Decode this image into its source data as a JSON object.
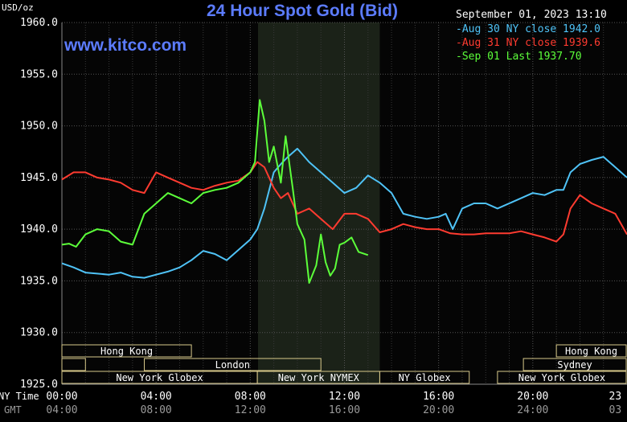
{
  "chart_data": {
    "type": "line",
    "title": "24 Hour Spot Gold (Bid)",
    "watermark": "www.kitco.com",
    "timestamp": "September 01, 2023 13:10",
    "ylabel": "USD/oz",
    "ylim": [
      1925,
      1960
    ],
    "yticks": [
      "1960.0",
      "1955.0",
      "1950.0",
      "1945.0",
      "1940.0",
      "1935.0",
      "1930.0",
      "1925.0"
    ],
    "x_axis_ny_label": "NY Time",
    "x_axis_gmt_label": "GMT",
    "x_ticks_ny": [
      "00:00",
      "04:00",
      "08:00",
      "12:00",
      "16:00",
      "20:00",
      "23"
    ],
    "x_ticks_gmt": [
      "04:00",
      "08:00",
      "12:00",
      "16:00",
      "20:00",
      "24:00",
      "03"
    ],
    "x_tick_hours": [
      0,
      4,
      8,
      12,
      16,
      20,
      23.5
    ],
    "xlim": [
      0,
      24
    ],
    "shaded_session_hours": [
      8.33,
      13.5
    ],
    "legend": [
      {
        "label": "Aug 30 NY close 1942.0",
        "color": "#4fc3f7"
      },
      {
        "label": "Aug 31 NY close 1939.6",
        "color": "#ff3b30"
      },
      {
        "label": "Sep 01 Last 1937.70",
        "color": "#5cff3a"
      }
    ],
    "sessions": [
      {
        "label": "Hong Kong",
        "row": 0,
        "start": 0,
        "end": 5.5
      },
      {
        "label": "London",
        "row": 1,
        "start": 0,
        "end": 1.0
      },
      {
        "label": "London",
        "row": 1,
        "start": 3.5,
        "end": 11.0,
        "text": true
      },
      {
        "label": "New York Globex",
        "row": 2,
        "start": 0,
        "end": 8.3
      },
      {
        "label": "New York NYMEX",
        "row": 2,
        "start": 8.3,
        "end": 13.5
      },
      {
        "label": "NY Globex",
        "row": 2,
        "start": 13.5,
        "end": 17.3
      },
      {
        "label": "Hong Kong",
        "row": 0,
        "start": 21.0,
        "end": 24
      },
      {
        "label": "Sydney",
        "row": 1,
        "start": 19.6,
        "end": 24
      },
      {
        "label": "New York Globex",
        "row": 2,
        "start": 18.5,
        "end": 24
      }
    ],
    "series": [
      {
        "name": "Aug 30 NY close 1942.0",
        "color": "#4fc3f7",
        "x": [
          0,
          0.5,
          1,
          1.5,
          2,
          2.5,
          3,
          3.5,
          4,
          4.5,
          5,
          5.5,
          6,
          6.5,
          7,
          7.5,
          8,
          8.3,
          8.6,
          9,
          9.3,
          9.6,
          10,
          10.5,
          11,
          11.5,
          12,
          12.5,
          13,
          13.5,
          14,
          14.5,
          15,
          15.5,
          16,
          16.3,
          16.6,
          17,
          17.5,
          18,
          18.5,
          19,
          19.5,
          20,
          20.5,
          21,
          21.3,
          21.6,
          22,
          22.5,
          23,
          23.5,
          24
        ],
        "y": [
          1936.7,
          1936.3,
          1935.8,
          1935.7,
          1935.6,
          1935.8,
          1935.4,
          1935.3,
          1935.6,
          1935.9,
          1936.3,
          1937.0,
          1937.9,
          1937.6,
          1937.0,
          1938.0,
          1939.0,
          1940.0,
          1942.0,
          1945.5,
          1946.3,
          1947.0,
          1947.8,
          1946.5,
          1945.5,
          1944.5,
          1943.5,
          1944.0,
          1945.2,
          1944.5,
          1943.5,
          1941.5,
          1941.2,
          1941.0,
          1941.2,
          1941.5,
          1940.0,
          1942.0,
          1942.5,
          1942.5,
          1942.0,
          1942.5,
          1943.0,
          1943.5,
          1943.3,
          1943.8,
          1943.8,
          1945.5,
          1946.3,
          1946.7,
          1947.0,
          1946.0,
          1945.0
        ]
      },
      {
        "name": "Aug 31 NY close 1939.6",
        "color": "#ff3b30",
        "x": [
          0,
          0.5,
          1,
          1.5,
          2,
          2.5,
          3,
          3.5,
          4,
          4.5,
          5,
          5.5,
          6,
          6.5,
          7,
          7.5,
          8,
          8.3,
          8.6,
          9,
          9.3,
          9.6,
          10,
          10.5,
          11,
          11.5,
          12,
          12.5,
          13,
          13.5,
          14,
          14.5,
          15,
          15.5,
          16,
          16.5,
          17,
          17.5,
          18,
          18.5,
          19,
          19.5,
          20,
          20.5,
          21,
          21.3,
          21.6,
          22,
          22.5,
          23,
          23.5,
          24
        ],
        "y": [
          1944.8,
          1945.5,
          1945.5,
          1945.0,
          1944.8,
          1944.5,
          1943.8,
          1943.5,
          1945.5,
          1945.0,
          1944.5,
          1944.0,
          1943.8,
          1944.2,
          1944.5,
          1944.7,
          1945.5,
          1946.5,
          1946.0,
          1944.0,
          1943.0,
          1943.5,
          1941.5,
          1942.0,
          1941.0,
          1940.0,
          1941.5,
          1941.5,
          1941.0,
          1939.7,
          1940.0,
          1940.5,
          1940.2,
          1940.0,
          1940.0,
          1939.6,
          1939.5,
          1939.5,
          1939.6,
          1939.6,
          1939.6,
          1939.8,
          1939.5,
          1939.2,
          1938.8,
          1939.5,
          1942.0,
          1943.3,
          1942.5,
          1942.0,
          1941.5,
          1939.5
        ]
      },
      {
        "name": "Sep 01 Last 1937.70",
        "color": "#5cff3a",
        "x": [
          0,
          0.3,
          0.6,
          1,
          1.5,
          2,
          2.5,
          3,
          3.5,
          4,
          4.5,
          5,
          5.5,
          6,
          6.5,
          7,
          7.5,
          8,
          8.2,
          8.4,
          8.6,
          8.8,
          9,
          9.3,
          9.5,
          9.8,
          10,
          10.3,
          10.5,
          10.8,
          11,
          11.2,
          11.4,
          11.6,
          11.8,
          12,
          12.3,
          12.6,
          13
        ],
        "y": [
          1938.5,
          1938.6,
          1938.3,
          1939.5,
          1940.0,
          1939.8,
          1938.8,
          1938.5,
          1941.5,
          1942.5,
          1943.5,
          1943.0,
          1942.5,
          1943.5,
          1943.8,
          1944.0,
          1944.5,
          1945.5,
          1946.5,
          1952.5,
          1950.5,
          1946.5,
          1948.0,
          1944.5,
          1949.0,
          1944.0,
          1940.5,
          1939.0,
          1934.8,
          1936.5,
          1939.5,
          1936.8,
          1935.5,
          1936.2,
          1938.5,
          1938.7,
          1939.2,
          1937.8,
          1937.5
        ]
      }
    ]
  }
}
